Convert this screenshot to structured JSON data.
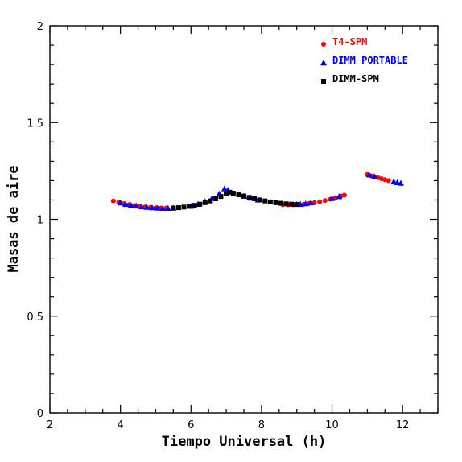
{
  "chart_data": {
    "type": "scatter",
    "xlabel": "Tiempo Universal (h)",
    "ylabel": "Masas de aire",
    "xlim": [
      2,
      13
    ],
    "ylim": [
      0,
      2
    ],
    "xticks": [
      2,
      4,
      6,
      8,
      10,
      12
    ],
    "yticks": [
      0,
      0.5,
      1,
      1.5,
      2
    ],
    "xtick_labels": [
      "2",
      "4",
      "6",
      "8",
      "10",
      "12"
    ],
    "ytick_labels": [
      "0",
      "0.5",
      "1",
      "1.5",
      "2"
    ],
    "legend_position": "top-right",
    "series": [
      {
        "name": "T4-SPM",
        "color": "#ff0000",
        "marker": "circle",
        "points": [
          [
            3.8,
            1.095
          ],
          [
            3.95,
            1.088
          ],
          [
            4.1,
            1.081
          ],
          [
            4.25,
            1.076
          ],
          [
            4.4,
            1.071
          ],
          [
            4.55,
            1.067
          ],
          [
            4.7,
            1.064
          ],
          [
            4.85,
            1.062
          ],
          [
            5.0,
            1.06
          ],
          [
            5.15,
            1.058
          ],
          [
            5.3,
            1.058
          ],
          [
            8.6,
            1.076
          ],
          [
            8.75,
            1.075
          ],
          [
            8.9,
            1.075
          ],
          [
            9.05,
            1.076
          ],
          [
            9.2,
            1.078
          ],
          [
            9.35,
            1.082
          ],
          [
            9.5,
            1.086
          ],
          [
            9.65,
            1.091
          ],
          [
            9.8,
            1.097
          ],
          [
            9.95,
            1.104
          ],
          [
            10.1,
            1.112
          ],
          [
            10.25,
            1.12
          ],
          [
            10.35,
            1.125
          ],
          [
            11.0,
            1.232
          ],
          [
            11.1,
            1.225
          ],
          [
            11.2,
            1.22
          ],
          [
            11.3,
            1.215
          ],
          [
            11.4,
            1.21
          ],
          [
            11.5,
            1.205
          ],
          [
            11.6,
            1.2
          ]
        ]
      },
      {
        "name": "DIMM PORTABLE",
        "color": "#0000ff",
        "marker": "triangle",
        "points": [
          [
            4.0,
            1.085
          ],
          [
            4.15,
            1.078
          ],
          [
            4.3,
            1.073
          ],
          [
            4.45,
            1.069
          ],
          [
            4.6,
            1.065
          ],
          [
            4.75,
            1.062
          ],
          [
            4.9,
            1.06
          ],
          [
            5.05,
            1.058
          ],
          [
            5.2,
            1.057
          ],
          [
            5.35,
            1.057
          ],
          [
            5.5,
            1.058
          ],
          [
            6.0,
            1.068
          ],
          [
            6.2,
            1.078
          ],
          [
            6.4,
            1.092
          ],
          [
            6.6,
            1.11
          ],
          [
            6.8,
            1.132
          ],
          [
            6.95,
            1.158
          ],
          [
            7.05,
            1.152
          ],
          [
            7.5,
            1.12
          ],
          [
            7.7,
            1.11
          ],
          [
            7.9,
            1.1
          ],
          [
            9.0,
            1.077
          ],
          [
            9.1,
            1.078
          ],
          [
            9.25,
            1.081
          ],
          [
            9.4,
            1.086
          ],
          [
            10.0,
            1.108
          ],
          [
            10.2,
            1.118
          ],
          [
            11.05,
            1.23
          ],
          [
            11.2,
            1.222
          ],
          [
            11.75,
            1.195
          ],
          [
            11.85,
            1.19
          ],
          [
            11.95,
            1.187
          ]
        ]
      },
      {
        "name": "DIMM-SPM",
        "color": "#000000",
        "marker": "square",
        "points": [
          [
            5.5,
            1.058
          ],
          [
            5.65,
            1.06
          ],
          [
            5.8,
            1.063
          ],
          [
            5.95,
            1.067
          ],
          [
            6.1,
            1.072
          ],
          [
            6.25,
            1.078
          ],
          [
            6.4,
            1.086
          ],
          [
            6.55,
            1.095
          ],
          [
            6.7,
            1.106
          ],
          [
            6.85,
            1.118
          ],
          [
            7.0,
            1.132
          ],
          [
            7.1,
            1.14
          ],
          [
            7.2,
            1.135
          ],
          [
            7.35,
            1.127
          ],
          [
            7.5,
            1.12
          ],
          [
            7.65,
            1.113
          ],
          [
            7.8,
            1.106
          ],
          [
            7.95,
            1.1
          ],
          [
            8.1,
            1.095
          ],
          [
            8.25,
            1.09
          ],
          [
            8.4,
            1.086
          ],
          [
            8.55,
            1.083
          ],
          [
            8.7,
            1.08
          ],
          [
            8.85,
            1.078
          ],
          [
            9.0,
            1.077
          ]
        ]
      }
    ]
  }
}
